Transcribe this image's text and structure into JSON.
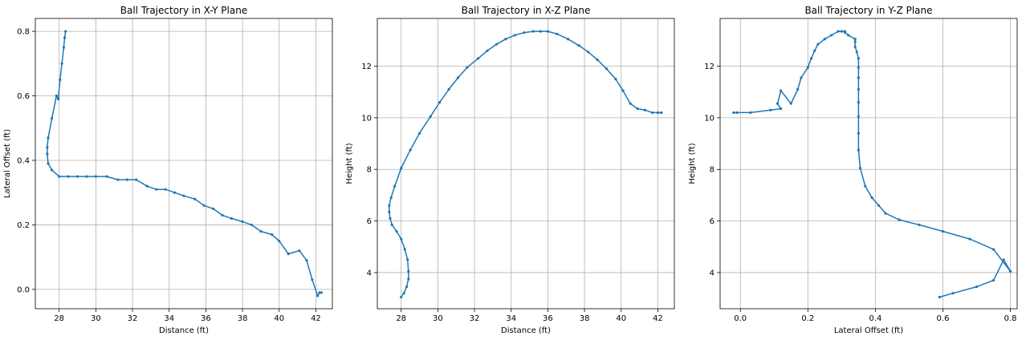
{
  "colors": {
    "line": "#1f77b4",
    "grid": "#b0b0b0",
    "axes": "#000000",
    "background": "#ffffff"
  },
  "chart_data": [
    {
      "type": "line",
      "title": "Ball Trajectory in X-Y Plane",
      "xlabel": "Distance (ft)",
      "ylabel": "Lateral Offset (ft)",
      "xlim": [
        26.7,
        42.9
      ],
      "ylim": [
        -0.06,
        0.84
      ],
      "xticks": [
        28,
        30,
        32,
        34,
        36,
        38,
        40,
        42
      ],
      "yticks": [
        0.0,
        0.2,
        0.4,
        0.6,
        0.8
      ],
      "ytick_labels": [
        "0.0",
        "0.2",
        "0.4",
        "0.6",
        "0.8"
      ],
      "grid": true,
      "series": [
        {
          "marker": "o",
          "x": [
            28.35,
            28.3,
            28.25,
            28.15,
            28.05,
            27.95,
            27.85,
            27.6,
            27.4,
            27.35,
            27.35,
            27.4,
            27.6,
            28.0,
            28.5,
            29.0,
            29.5,
            30.0,
            30.6,
            31.2,
            31.7,
            32.2,
            32.8,
            33.3,
            33.8,
            34.3,
            34.8,
            35.4,
            35.9,
            36.4,
            36.9,
            37.4,
            38.0,
            38.5,
            39.0,
            39.6,
            40.0,
            40.5,
            41.1,
            41.5,
            41.8,
            42.1,
            42.2,
            42.3
          ],
          "y": [
            0.8,
            0.78,
            0.75,
            0.7,
            0.65,
            0.59,
            0.6,
            0.53,
            0.47,
            0.44,
            0.42,
            0.39,
            0.37,
            0.35,
            0.35,
            0.35,
            0.35,
            0.35,
            0.35,
            0.34,
            0.34,
            0.34,
            0.32,
            0.31,
            0.31,
            0.3,
            0.29,
            0.28,
            0.26,
            0.25,
            0.23,
            0.22,
            0.21,
            0.2,
            0.18,
            0.17,
            0.15,
            0.11,
            0.12,
            0.09,
            0.03,
            -0.02,
            -0.01,
            -0.01
          ]
        }
      ]
    },
    {
      "type": "line",
      "title": "Ball Trajectory in X-Z Plane",
      "xlabel": "Distance (ft)",
      "ylabel": "Height (ft)",
      "xlim": [
        26.7,
        42.9
      ],
      "ylim": [
        2.6,
        13.85
      ],
      "xticks": [
        28,
        30,
        32,
        34,
        36,
        38,
        40,
        42
      ],
      "yticks": [
        4,
        6,
        8,
        10,
        12
      ],
      "grid": true,
      "series": [
        {
          "marker": "o",
          "x": [
            28.0,
            28.15,
            28.3,
            28.4,
            28.4,
            28.35,
            28.2,
            28.0,
            27.75,
            27.5,
            27.4,
            27.35,
            27.35,
            27.45,
            27.65,
            28.0,
            28.5,
            29.0,
            29.6,
            30.1,
            30.6,
            31.1,
            31.6,
            32.2,
            32.7,
            33.2,
            33.7,
            34.2,
            34.7,
            35.2,
            35.6,
            36.0,
            36.5,
            37.1,
            37.7,
            38.2,
            38.7,
            39.2,
            39.7,
            40.1,
            40.5,
            40.9,
            41.3,
            41.7,
            42.0,
            42.2
          ],
          "y": [
            3.05,
            3.2,
            3.45,
            3.75,
            4.05,
            4.5,
            4.9,
            5.3,
            5.6,
            5.85,
            6.1,
            6.35,
            6.6,
            6.9,
            7.35,
            8.05,
            8.75,
            9.4,
            10.05,
            10.6,
            11.1,
            11.55,
            11.95,
            12.3,
            12.6,
            12.85,
            13.05,
            13.2,
            13.3,
            13.35,
            13.35,
            13.35,
            13.25,
            13.05,
            12.8,
            12.55,
            12.25,
            11.9,
            11.5,
            11.05,
            10.55,
            10.35,
            10.3,
            10.2,
            10.2,
            10.2
          ]
        }
      ]
    },
    {
      "type": "line",
      "title": "Ball Trajectory in Y-Z Plane",
      "xlabel": "Lateral Offset (ft)",
      "ylabel": "Height (ft)",
      "xlim": [
        -0.06,
        0.82
      ],
      "ylim": [
        2.6,
        13.85
      ],
      "xticks": [
        0.0,
        0.2,
        0.4,
        0.6,
        0.8
      ],
      "xtick_labels": [
        "0.0",
        "0.2",
        "0.4",
        "0.6",
        "0.8"
      ],
      "yticks": [
        4,
        6,
        8,
        10,
        12
      ],
      "grid": true,
      "series": [
        {
          "marker": "o",
          "x": [
            0.59,
            0.63,
            0.7,
            0.75,
            0.78,
            0.8,
            0.75,
            0.68,
            0.6,
            0.53,
            0.47,
            0.43,
            0.41,
            0.39,
            0.37,
            0.355,
            0.35,
            0.35,
            0.35,
            0.35,
            0.35,
            0.35,
            0.35,
            0.35,
            0.345,
            0.34,
            0.34,
            0.34,
            0.32,
            0.31,
            0.31,
            0.3,
            0.29,
            0.27,
            0.25,
            0.23,
            0.22,
            0.21,
            0.2,
            0.18,
            0.17,
            0.15,
            0.12,
            0.11,
            0.12,
            0.09,
            0.03,
            -0.01,
            -0.02
          ],
          "y": [
            3.05,
            3.2,
            3.45,
            3.7,
            4.5,
            4.05,
            4.9,
            5.3,
            5.6,
            5.85,
            6.05,
            6.3,
            6.6,
            6.9,
            7.35,
            8.05,
            8.75,
            9.4,
            10.05,
            10.6,
            11.1,
            11.55,
            11.95,
            12.3,
            12.55,
            12.75,
            12.95,
            13.05,
            13.2,
            13.3,
            13.35,
            13.35,
            13.35,
            13.2,
            13.05,
            12.85,
            12.6,
            12.3,
            11.95,
            11.55,
            11.1,
            10.55,
            11.05,
            10.55,
            10.35,
            10.3,
            10.2,
            10.2,
            10.2
          ]
        }
      ]
    }
  ]
}
